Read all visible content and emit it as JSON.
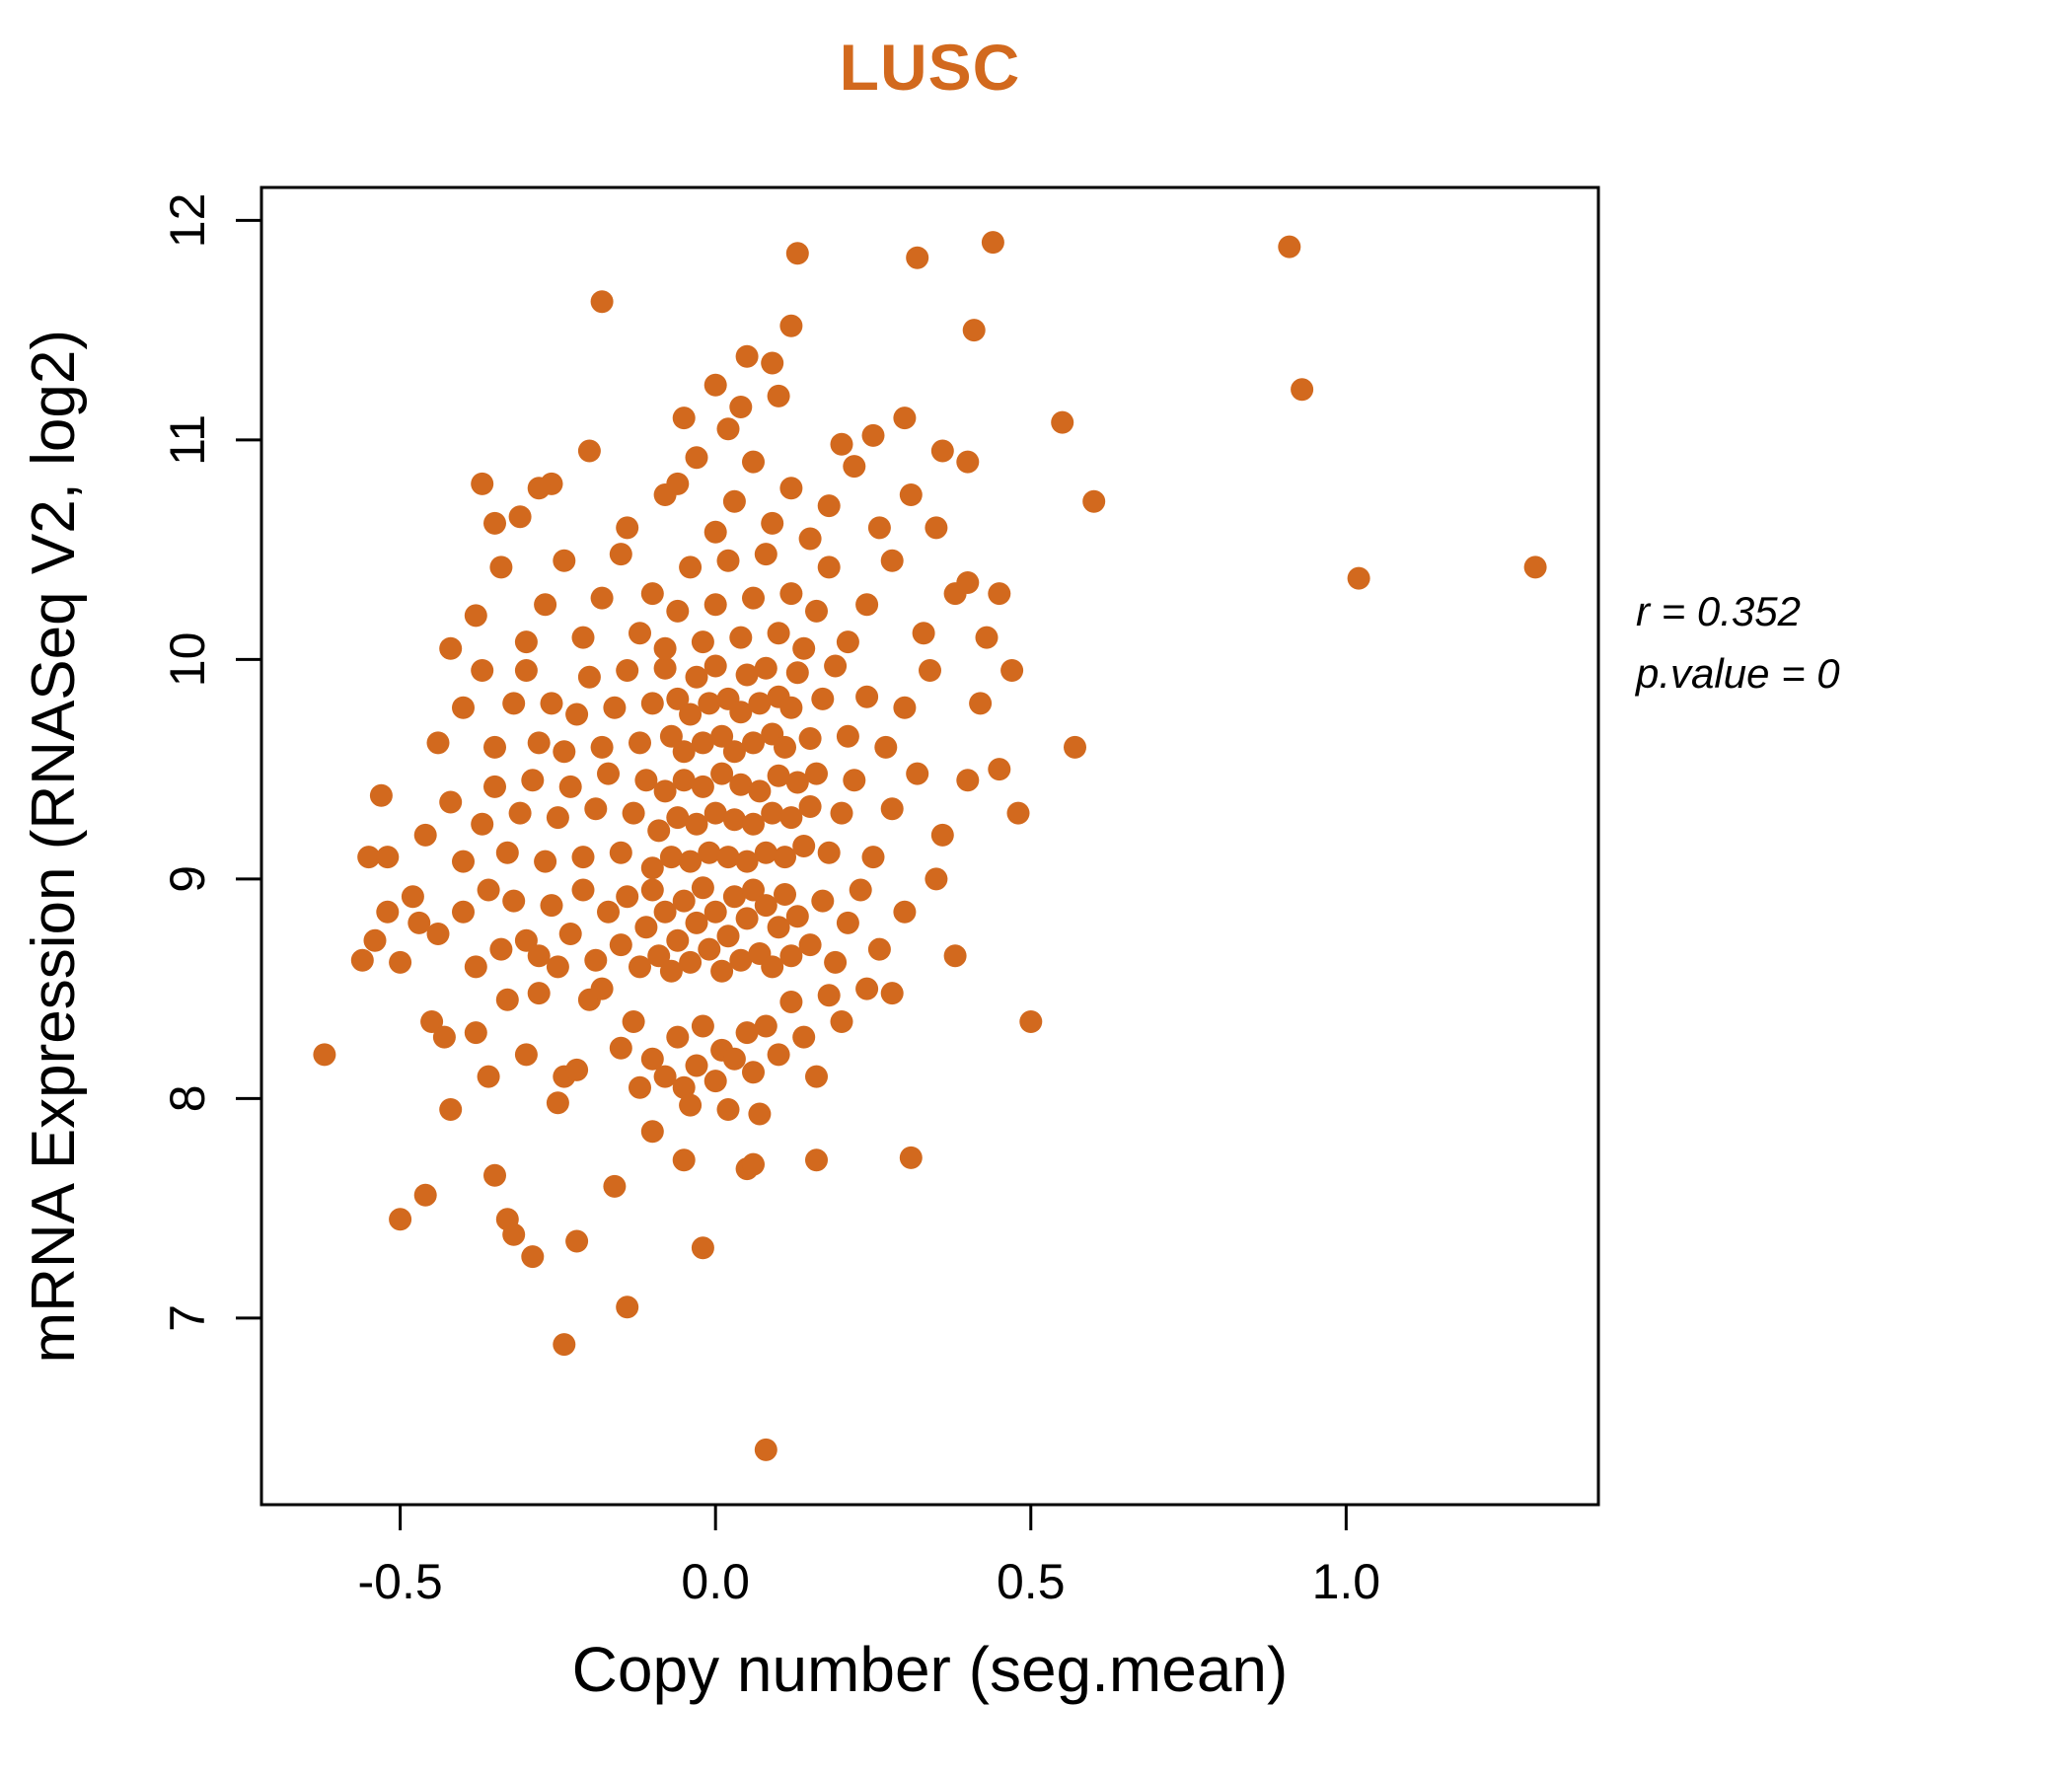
{
  "chart_data": {
    "type": "scatter",
    "title": "LUSC",
    "xlabel": "Copy number (seg.mean)",
    "ylabel": "mRNA Expression (RNASeq V2, log2)",
    "annotation": {
      "line1": "r = 0.352",
      "line2": "p.value = 0"
    },
    "xlim": [
      -0.72,
      1.4
    ],
    "ylim": [
      6.15,
      12.15
    ],
    "x_ticks": [
      -0.5,
      0.0,
      0.5,
      1.0
    ],
    "x_tick_labels": [
      "-0.5",
      "0.0",
      "0.5",
      "1.0"
    ],
    "y_ticks": [
      7,
      8,
      9,
      10,
      11,
      12
    ],
    "y_tick_labels": [
      "7",
      "8",
      "9",
      "10",
      "11",
      "12"
    ],
    "grid": false,
    "legend": "none",
    "point_color": "#D2691E",
    "title_color": "#D2691E",
    "points": [
      [
        1.3,
        10.42
      ],
      [
        1.02,
        10.37
      ],
      [
        0.91,
        11.88
      ],
      [
        0.93,
        11.23
      ],
      [
        0.6,
        10.72
      ],
      [
        0.55,
        11.08
      ],
      [
        0.57,
        9.6
      ],
      [
        0.5,
        8.35
      ],
      [
        0.44,
        11.9
      ],
      [
        0.41,
        11.5
      ],
      [
        0.45,
        10.3
      ],
      [
        0.47,
        9.95
      ],
      [
        0.43,
        10.1
      ],
      [
        0.4,
        10.9
      ],
      [
        0.36,
        10.95
      ],
      [
        0.32,
        11.83
      ],
      [
        0.3,
        11.1
      ],
      [
        0.13,
        11.85
      ],
      [
        0.12,
        11.52
      ],
      [
        0.09,
        11.35
      ],
      [
        0.04,
        11.15
      ],
      [
        0.02,
        11.05
      ],
      [
        -0.06,
        10.8
      ],
      [
        -0.18,
        11.63
      ],
      [
        -0.26,
        10.8
      ],
      [
        -0.37,
        10.8
      ],
      [
        -0.31,
        10.65
      ],
      [
        -0.24,
        6.88
      ],
      [
        0.08,
        6.4
      ],
      [
        -0.62,
        8.2
      ],
      [
        -0.53,
        9.38
      ],
      [
        -0.55,
        9.1
      ],
      [
        -0.54,
        8.72
      ],
      [
        -0.56,
        8.63
      ],
      [
        -0.5,
        7.45
      ],
      [
        -0.46,
        7.56
      ],
      [
        -0.52,
        8.85
      ],
      [
        -0.47,
        8.8
      ],
      [
        -0.35,
        7.65
      ],
      [
        -0.33,
        7.45
      ],
      [
        -0.32,
        7.38
      ],
      [
        -0.29,
        7.28
      ],
      [
        -0.22,
        7.35
      ],
      [
        -0.14,
        7.05
      ],
      [
        -0.02,
        7.32
      ],
      [
        0.05,
        7.68
      ],
      [
        0.06,
        7.7
      ],
      [
        -0.05,
        7.72
      ],
      [
        0.16,
        7.72
      ],
      [
        0.31,
        7.73
      ],
      [
        -0.42,
        7.95
      ],
      [
        -0.36,
        8.1
      ],
      [
        -0.25,
        7.98
      ],
      [
        -0.16,
        7.6
      ],
      [
        -0.1,
        7.85
      ],
      [
        -0.45,
        8.35
      ],
      [
        -0.43,
        8.28
      ],
      [
        -0.38,
        8.3
      ],
      [
        -0.33,
        8.45
      ],
      [
        -0.3,
        8.2
      ],
      [
        -0.28,
        8.48
      ],
      [
        -0.24,
        8.1
      ],
      [
        -0.22,
        8.13
      ],
      [
        -0.2,
        8.45
      ],
      [
        -0.18,
        8.5
      ],
      [
        -0.15,
        8.23
      ],
      [
        -0.13,
        8.35
      ],
      [
        -0.12,
        8.05
      ],
      [
        -0.1,
        8.18
      ],
      [
        -0.08,
        8.1
      ],
      [
        -0.06,
        8.28
      ],
      [
        -0.05,
        8.05
      ],
      [
        -0.04,
        7.97
      ],
      [
        -0.03,
        8.15
      ],
      [
        -0.02,
        8.33
      ],
      [
        0.0,
        8.08
      ],
      [
        0.01,
        8.22
      ],
      [
        0.02,
        7.95
      ],
      [
        0.03,
        8.18
      ],
      [
        0.05,
        8.3
      ],
      [
        0.06,
        8.12
      ],
      [
        0.08,
        8.33
      ],
      [
        0.1,
        8.2
      ],
      [
        0.12,
        8.44
      ],
      [
        0.14,
        8.28
      ],
      [
        0.16,
        8.1
      ],
      [
        0.18,
        8.47
      ],
      [
        0.2,
        8.35
      ],
      [
        0.24,
        8.5
      ],
      [
        0.28,
        8.48
      ],
      [
        0.07,
        7.93
      ],
      [
        -0.5,
        8.62
      ],
      [
        -0.48,
        8.92
      ],
      [
        -0.44,
        8.75
      ],
      [
        -0.4,
        8.85
      ],
      [
        -0.38,
        8.6
      ],
      [
        -0.36,
        8.95
      ],
      [
        -0.34,
        8.68
      ],
      [
        -0.32,
        8.9
      ],
      [
        -0.3,
        8.72
      ],
      [
        -0.28,
        8.65
      ],
      [
        -0.26,
        8.88
      ],
      [
        -0.25,
        8.6
      ],
      [
        -0.23,
        8.75
      ],
      [
        -0.21,
        8.95
      ],
      [
        -0.19,
        8.63
      ],
      [
        -0.17,
        8.85
      ],
      [
        -0.15,
        8.7
      ],
      [
        -0.14,
        8.92
      ],
      [
        -0.12,
        8.6
      ],
      [
        -0.11,
        8.78
      ],
      [
        -0.1,
        8.95
      ],
      [
        -0.09,
        8.65
      ],
      [
        -0.08,
        8.85
      ],
      [
        -0.07,
        8.58
      ],
      [
        -0.06,
        8.72
      ],
      [
        -0.05,
        8.9
      ],
      [
        -0.04,
        8.62
      ],
      [
        -0.03,
        8.8
      ],
      [
        -0.02,
        8.96
      ],
      [
        -0.01,
        8.68
      ],
      [
        0.0,
        8.85
      ],
      [
        0.01,
        8.58
      ],
      [
        0.02,
        8.74
      ],
      [
        0.03,
        8.92
      ],
      [
        0.04,
        8.63
      ],
      [
        0.05,
        8.82
      ],
      [
        0.06,
        8.95
      ],
      [
        0.07,
        8.66
      ],
      [
        0.08,
        8.88
      ],
      [
        0.09,
        8.6
      ],
      [
        0.1,
        8.78
      ],
      [
        0.11,
        8.93
      ],
      [
        0.12,
        8.65
      ],
      [
        0.13,
        8.83
      ],
      [
        0.15,
        8.7
      ],
      [
        0.17,
        8.9
      ],
      [
        0.19,
        8.62
      ],
      [
        0.21,
        8.8
      ],
      [
        0.23,
        8.95
      ],
      [
        0.26,
        8.68
      ],
      [
        0.3,
        8.85
      ],
      [
        -0.52,
        9.1
      ],
      [
        -0.46,
        9.2
      ],
      [
        -0.42,
        9.35
      ],
      [
        -0.4,
        9.08
      ],
      [
        -0.37,
        9.25
      ],
      [
        -0.35,
        9.42
      ],
      [
        -0.33,
        9.12
      ],
      [
        -0.31,
        9.3
      ],
      [
        -0.29,
        9.45
      ],
      [
        -0.27,
        9.08
      ],
      [
        -0.25,
        9.28
      ],
      [
        -0.23,
        9.42
      ],
      [
        -0.21,
        9.1
      ],
      [
        -0.19,
        9.32
      ],
      [
        -0.17,
        9.48
      ],
      [
        -0.15,
        9.12
      ],
      [
        -0.13,
        9.3
      ],
      [
        -0.11,
        9.45
      ],
      [
        -0.1,
        9.05
      ],
      [
        -0.09,
        9.22
      ],
      [
        -0.08,
        9.4
      ],
      [
        -0.07,
        9.1
      ],
      [
        -0.06,
        9.28
      ],
      [
        -0.05,
        9.45
      ],
      [
        -0.04,
        9.08
      ],
      [
        -0.03,
        9.25
      ],
      [
        -0.02,
        9.42
      ],
      [
        -0.01,
        9.12
      ],
      [
        0.0,
        9.3
      ],
      [
        0.01,
        9.48
      ],
      [
        0.02,
        9.1
      ],
      [
        0.03,
        9.27
      ],
      [
        0.04,
        9.43
      ],
      [
        0.05,
        9.08
      ],
      [
        0.06,
        9.25
      ],
      [
        0.07,
        9.4
      ],
      [
        0.08,
        9.12
      ],
      [
        0.09,
        9.3
      ],
      [
        0.1,
        9.47
      ],
      [
        0.11,
        9.1
      ],
      [
        0.12,
        9.28
      ],
      [
        0.13,
        9.44
      ],
      [
        0.14,
        9.15
      ],
      [
        0.15,
        9.33
      ],
      [
        0.16,
        9.48
      ],
      [
        0.18,
        9.12
      ],
      [
        0.2,
        9.3
      ],
      [
        0.22,
        9.45
      ],
      [
        0.25,
        9.1
      ],
      [
        0.28,
        9.32
      ],
      [
        0.32,
        9.48
      ],
      [
        0.36,
        9.2
      ],
      [
        -0.44,
        9.62
      ],
      [
        -0.4,
        9.78
      ],
      [
        -0.37,
        9.95
      ],
      [
        -0.35,
        9.6
      ],
      [
        -0.32,
        9.8
      ],
      [
        -0.3,
        9.95
      ],
      [
        -0.28,
        9.62
      ],
      [
        -0.26,
        9.8
      ],
      [
        -0.24,
        9.58
      ],
      [
        -0.22,
        9.75
      ],
      [
        -0.2,
        9.92
      ],
      [
        -0.18,
        9.6
      ],
      [
        -0.16,
        9.78
      ],
      [
        -0.14,
        9.95
      ],
      [
        -0.12,
        9.62
      ],
      [
        -0.1,
        9.8
      ],
      [
        -0.08,
        9.96
      ],
      [
        -0.07,
        9.65
      ],
      [
        -0.06,
        9.82
      ],
      [
        -0.05,
        9.58
      ],
      [
        -0.04,
        9.75
      ],
      [
        -0.03,
        9.92
      ],
      [
        -0.02,
        9.62
      ],
      [
        -0.01,
        9.8
      ],
      [
        0.0,
        9.97
      ],
      [
        0.01,
        9.65
      ],
      [
        0.02,
        9.82
      ],
      [
        0.03,
        9.58
      ],
      [
        0.04,
        9.76
      ],
      [
        0.05,
        9.93
      ],
      [
        0.06,
        9.62
      ],
      [
        0.07,
        9.8
      ],
      [
        0.08,
        9.96
      ],
      [
        0.09,
        9.66
      ],
      [
        0.1,
        9.83
      ],
      [
        0.11,
        9.6
      ],
      [
        0.12,
        9.78
      ],
      [
        0.13,
        9.94
      ],
      [
        0.15,
        9.64
      ],
      [
        0.17,
        9.82
      ],
      [
        0.19,
        9.97
      ],
      [
        0.21,
        9.65
      ],
      [
        0.24,
        9.83
      ],
      [
        0.27,
        9.6
      ],
      [
        0.3,
        9.78
      ],
      [
        0.34,
        9.95
      ],
      [
        -0.42,
        10.05
      ],
      [
        -0.38,
        10.2
      ],
      [
        -0.34,
        10.42
      ],
      [
        -0.3,
        10.08
      ],
      [
        -0.27,
        10.25
      ],
      [
        -0.24,
        10.45
      ],
      [
        -0.21,
        10.1
      ],
      [
        -0.18,
        10.28
      ],
      [
        -0.15,
        10.48
      ],
      [
        -0.12,
        10.12
      ],
      [
        -0.1,
        10.3
      ],
      [
        -0.08,
        10.05
      ],
      [
        -0.06,
        10.22
      ],
      [
        -0.04,
        10.42
      ],
      [
        -0.02,
        10.08
      ],
      [
        0.0,
        10.25
      ],
      [
        0.02,
        10.45
      ],
      [
        0.04,
        10.1
      ],
      [
        0.06,
        10.28
      ],
      [
        0.08,
        10.48
      ],
      [
        0.1,
        10.12
      ],
      [
        0.12,
        10.3
      ],
      [
        0.14,
        10.05
      ],
      [
        0.16,
        10.22
      ],
      [
        0.18,
        10.42
      ],
      [
        0.21,
        10.08
      ],
      [
        0.24,
        10.25
      ],
      [
        0.28,
        10.45
      ],
      [
        0.33,
        10.12
      ],
      [
        0.38,
        10.3
      ],
      [
        -0.35,
        10.62
      ],
      [
        -0.28,
        10.78
      ],
      [
        -0.2,
        10.95
      ],
      [
        -0.14,
        10.6
      ],
      [
        -0.08,
        10.75
      ],
      [
        -0.03,
        10.92
      ],
      [
        0.0,
        10.58
      ],
      [
        0.03,
        10.72
      ],
      [
        0.06,
        10.9
      ],
      [
        0.09,
        10.62
      ],
      [
        0.12,
        10.78
      ],
      [
        0.15,
        10.55
      ],
      [
        0.18,
        10.7
      ],
      [
        0.22,
        10.88
      ],
      [
        0.26,
        10.6
      ],
      [
        0.31,
        10.75
      ],
      [
        -0.05,
        11.1
      ],
      [
        0.0,
        11.25
      ],
      [
        0.05,
        11.38
      ],
      [
        0.1,
        11.2
      ],
      [
        0.2,
        10.98
      ],
      [
        0.25,
        11.02
      ],
      [
        0.35,
        9.0
      ],
      [
        0.38,
        8.65
      ],
      [
        0.4,
        9.45
      ],
      [
        0.42,
        9.8
      ],
      [
        0.45,
        9.5
      ],
      [
        0.48,
        9.3
      ],
      [
        0.35,
        10.6
      ],
      [
        0.4,
        10.35
      ]
    ]
  }
}
